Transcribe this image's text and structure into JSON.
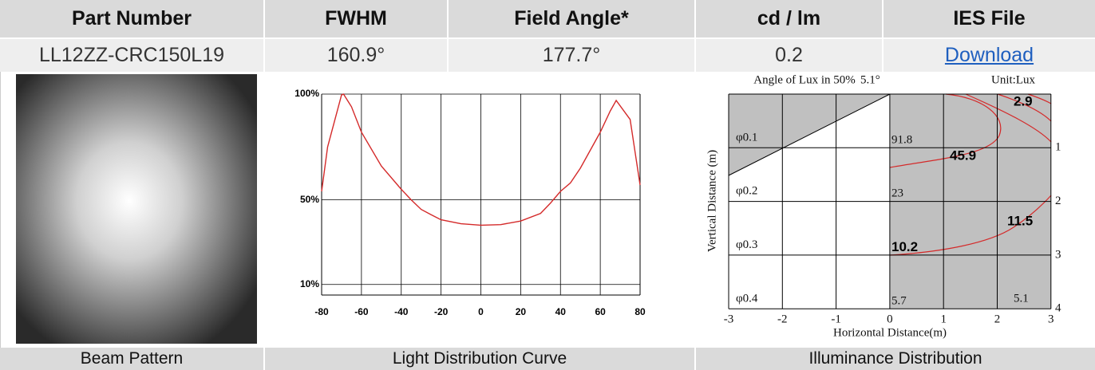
{
  "header": [
    "Part Number",
    "FWHM",
    "Field Angle*",
    "cd / lm",
    "IES File"
  ],
  "row": [
    "LL12ZZ-CRC150L19",
    "160.9°",
    "177.7°",
    "0.2",
    "Download"
  ],
  "captions": [
    "Beam Pattern",
    "Light Distribution Curve",
    "Illuminance Distribution"
  ],
  "light_distribution_curve": {
    "type": "line",
    "color": "#d42a2a",
    "x": [
      -80,
      -77,
      -70,
      -69,
      -65,
      -60,
      -50,
      -40,
      -35,
      -30,
      -25,
      -20,
      -10,
      0,
      10,
      20,
      30,
      35,
      40,
      45,
      50,
      60,
      65,
      68,
      75,
      80
    ],
    "values": [
      54,
      75,
      99.6,
      100,
      94,
      82,
      66,
      55,
      50,
      45.5,
      43,
      40.6,
      38.7,
      38,
      38.3,
      40,
      43.6,
      48.5,
      54,
      58,
      65,
      82,
      92,
      97,
      88,
      57
    ],
    "xlim": [
      -80,
      80
    ],
    "ylim": [
      5,
      100
    ],
    "xticks": [
      -80,
      -60,
      -40,
      -20,
      0,
      20,
      40,
      60,
      80
    ],
    "yticks": [
      {
        "value": 10,
        "label": "10%"
      },
      {
        "value": 50,
        "label": "50%"
      },
      {
        "value": 100,
        "label": "100%"
      }
    ],
    "grid": true
  },
  "illuminance": {
    "title": "Angle of Lux in 50%",
    "angle": "5.1°",
    "unit": "Unit:Lux",
    "x_label": "Horizontal Distance(m)",
    "y_label": "Vertical Distance (m)",
    "x_ticks": [
      "-3",
      "-2",
      "-1",
      "0",
      "1",
      "2",
      "3"
    ],
    "y_ticks": [
      "1",
      "2",
      "3",
      "4"
    ],
    "beam_labels": [
      "φ0.1",
      "φ0.2",
      "φ0.3",
      "φ0.4"
    ],
    "center_lux": [
      "91.8",
      "23",
      "10.2",
      "5.7"
    ],
    "contour_labels": [
      "2.9",
      "45.9",
      "11.5"
    ],
    "edge_lux": "5.1"
  }
}
